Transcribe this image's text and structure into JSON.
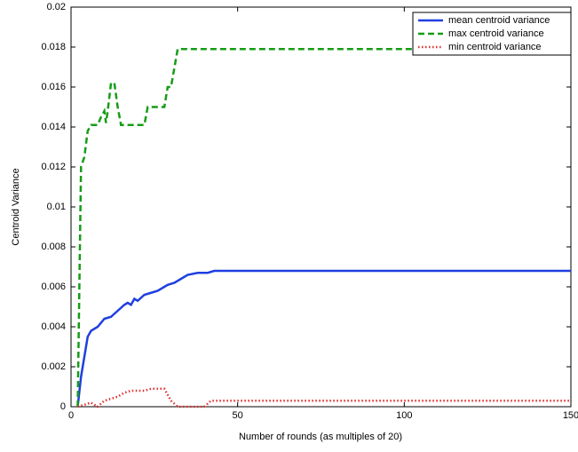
{
  "chart_data": {
    "type": "line",
    "xlabel": "Number of rounds (as multiples of 20)",
    "ylabel": "Centroid Variance",
    "xlim": [
      0,
      150
    ],
    "xticks": [
      0,
      50,
      100,
      150
    ],
    "ylim": [
      0,
      0.02
    ],
    "yticks": [
      0,
      0.002,
      0.004,
      0.006,
      0.008,
      0.01,
      0.012,
      0.014,
      0.016,
      0.018,
      0.02
    ],
    "legend": "upper right",
    "series": [
      {
        "name": "mean centroid variance",
        "color": "#1f3fe0",
        "style": "solid",
        "x": [
          2,
          3,
          4,
          5,
          6,
          8,
          10,
          12,
          14,
          16,
          17,
          18,
          19,
          20,
          22,
          24,
          26,
          28,
          29,
          31,
          33,
          35,
          38,
          41,
          43,
          150
        ],
        "values": [
          0,
          0.0015,
          0.0025,
          0.0035,
          0.0038,
          0.004,
          0.0044,
          0.0045,
          0.0048,
          0.0051,
          0.0052,
          0.0051,
          0.0054,
          0.0053,
          0.0056,
          0.0057,
          0.0058,
          0.006,
          0.0061,
          0.0062,
          0.0064,
          0.0066,
          0.0067,
          0.0067,
          0.0068,
          0.0068
        ]
      },
      {
        "name": "max centroid variance",
        "color": "#169c16",
        "style": "dashed",
        "x": [
          2,
          3,
          4,
          5,
          6,
          8,
          9,
          10,
          10.5,
          11,
          12,
          13,
          14,
          15,
          20,
          22,
          23,
          28,
          29,
          30,
          32,
          150
        ],
        "values": [
          0,
          0.012,
          0.0125,
          0.0138,
          0.0141,
          0.0141,
          0.0145,
          0.0148,
          0.0142,
          0.0148,
          0.0162,
          0.0162,
          0.015,
          0.0141,
          0.0141,
          0.0141,
          0.015,
          0.015,
          0.016,
          0.016,
          0.0179,
          0.0179
        ]
      },
      {
        "name": "min centroid variance",
        "color": "#e03030",
        "style": "dotted",
        "x": [
          2,
          6,
          8,
          10,
          14,
          16,
          18,
          22,
          24,
          28,
          30,
          32,
          40,
          42,
          150
        ],
        "values": [
          0,
          0.0002,
          0,
          0.0003,
          0.0005,
          0.0007,
          0.0008,
          0.0008,
          0.0009,
          0.0009,
          0.0003,
          0,
          0,
          0.0003,
          0.0003
        ]
      }
    ]
  }
}
